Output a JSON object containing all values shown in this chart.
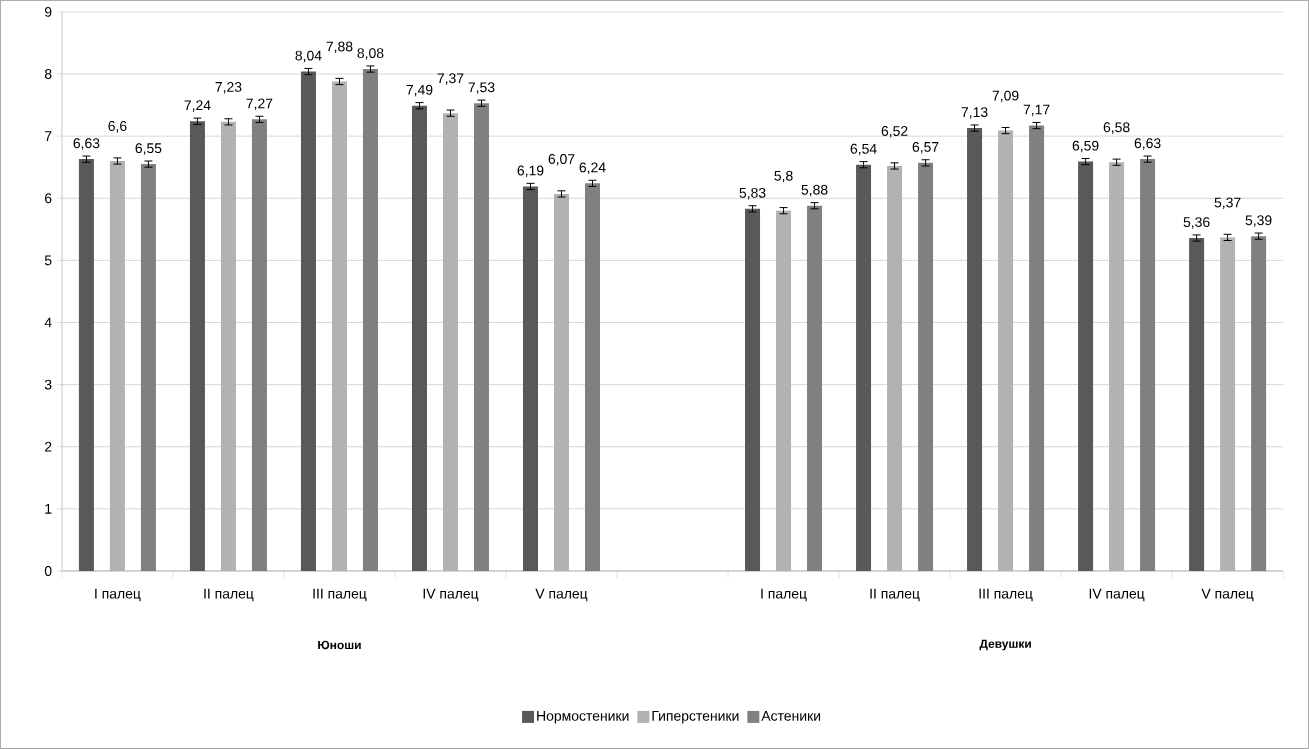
{
  "chart_data": {
    "type": "bar",
    "categories": [
      "I палец",
      "II палец",
      "III палец",
      "IV палец",
      "V палец",
      null,
      "I палец",
      "II палец",
      "III палец",
      "IV палец",
      "V палец"
    ],
    "series": [
      {
        "name": "Нормостеники",
        "color": "#595959",
        "values": [
          6.63,
          7.24,
          8.04,
          7.49,
          6.19,
          null,
          5.83,
          6.54,
          7.13,
          6.59,
          5.36
        ],
        "errors": [
          0.05,
          0.05,
          0.05,
          0.05,
          0.05,
          null,
          0.05,
          0.05,
          0.05,
          0.05,
          0.05
        ],
        "value_labels": [
          "6,63",
          "7,24",
          "8,04",
          "7,49",
          "6,19",
          null,
          "5,83",
          "6,54",
          "7,13",
          "6,59",
          "5,36"
        ]
      },
      {
        "name": "Гиперстеники",
        "color": "#b2b2b2",
        "values": [
          6.6,
          7.23,
          7.88,
          7.37,
          6.07,
          null,
          5.8,
          6.52,
          7.09,
          6.58,
          5.37
        ],
        "errors": [
          0.05,
          0.05,
          0.05,
          0.05,
          0.05,
          null,
          0.05,
          0.05,
          0.05,
          0.05,
          0.05
        ],
        "value_labels": [
          "6,6",
          "7,23",
          "7,88",
          "7,37",
          "6,07",
          null,
          "5,8",
          "6,52",
          "7,09",
          "6,58",
          "5,37"
        ]
      },
      {
        "name": "Астеники",
        "color": "#808080",
        "values": [
          6.55,
          7.27,
          8.08,
          7.53,
          6.24,
          null,
          5.88,
          6.57,
          7.17,
          6.63,
          5.39
        ],
        "errors": [
          0.05,
          0.05,
          0.05,
          0.05,
          0.05,
          null,
          0.05,
          0.05,
          0.05,
          0.05,
          0.05
        ],
        "value_labels": [
          "6,55",
          "7,27",
          "8,08",
          "7,53",
          "6,24",
          null,
          "5,88",
          "6,57",
          "7,17",
          "6,63",
          "5,39"
        ]
      }
    ],
    "ylim": [
      0,
      9
    ],
    "yticks": [
      0,
      1,
      2,
      3,
      4,
      5,
      6,
      7,
      8,
      9
    ],
    "grid": "y",
    "legend": "bottom",
    "annotations": [
      "Юноши",
      "Девушки"
    ]
  }
}
